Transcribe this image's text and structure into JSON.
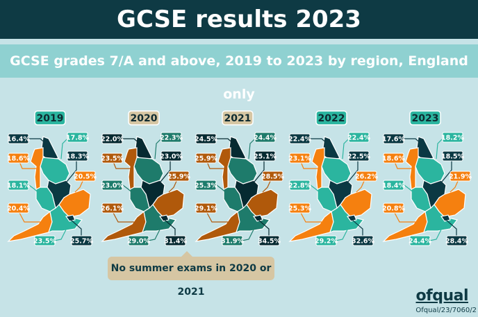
{
  "header": {
    "title": "GCSE results 2023"
  },
  "subtitle": "GCSE grades 7/A and above, 2019 to 2023 by region, England only",
  "note": "No summer exams in 2020 or 2021",
  "logo": "ofqual",
  "reference": "Ofqual/23/7060/2",
  "chart_data": {
    "type": "choropleth-map",
    "title": "GCSE grades 7/A and above, 2019 to 2023 by region, England only",
    "unit": "%",
    "region_color_groups": [
      "dark",
      "teal",
      "dark",
      "orange",
      "orange",
      "teal",
      "orange",
      "teal",
      "dark"
    ],
    "palettes": {
      "exam_year": {
        "dark": "#0b3943",
        "teal": "#2bb59f",
        "orange": "#f5800f",
        "badge": "#2bb59f"
      },
      "no_exam_year": {
        "dark": "#062a31",
        "teal": "#1e7b6b",
        "orange": "#b0590b",
        "badge": "#d6c6a3"
      }
    },
    "series": [
      {
        "name": "2019",
        "palette": "exam_year",
        "values": [
          16.4,
          17.8,
          18.3,
          18.6,
          20.5,
          18.1,
          20.4,
          23.5,
          25.7
        ]
      },
      {
        "name": "2020",
        "palette": "no_exam_year",
        "values": [
          22.0,
          22.3,
          23.0,
          23.5,
          25.9,
          23.0,
          26.1,
          29.0,
          31.4
        ]
      },
      {
        "name": "2021",
        "palette": "no_exam_year",
        "values": [
          24.5,
          24.4,
          25.1,
          25.9,
          28.5,
          25.3,
          29.1,
          31.9,
          34.5
        ]
      },
      {
        "name": "2022",
        "palette": "exam_year",
        "values": [
          22.4,
          22.4,
          22.5,
          23.1,
          26.2,
          22.8,
          25.3,
          29.2,
          32.6
        ]
      },
      {
        "name": "2023",
        "palette": "exam_year",
        "values": [
          17.6,
          18.2,
          18.5,
          18.6,
          21.9,
          18.4,
          20.8,
          24.4,
          28.4
        ]
      }
    ]
  }
}
